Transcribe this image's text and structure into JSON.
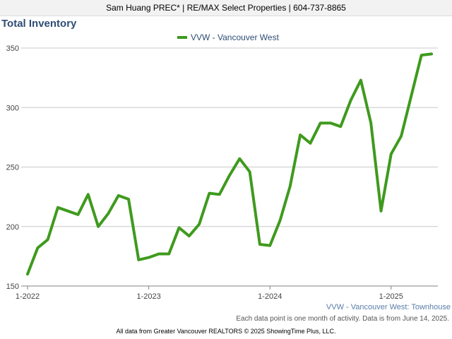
{
  "header": {
    "agent_line": "Sam Huang PREC* | RE/MAX Select Properties | 604-737-8865"
  },
  "footer": {
    "note": "Each data point is one month of activity. Data is from June 14, 2025.",
    "copyright": "All data from Greater Vancouver REALTORS © 2025 ShowingTime Plus, LLC."
  },
  "chart_data": {
    "type": "line",
    "title": "Total Inventory",
    "subtitle_label": "VVW - Vancouver West: Townhouse",
    "legend_position": "top-center",
    "grid": true,
    "ylim": [
      150,
      355
    ],
    "yticks": [
      150,
      200,
      250,
      300,
      350
    ],
    "xtick_labels": [
      "1-2022",
      "1-2023",
      "1-2024",
      "1-2025"
    ],
    "series_color": "#3f9a1e",
    "series": [
      {
        "name": "VVW - Vancouver West",
        "start_month": "2022-01",
        "values": [
          160,
          182,
          189,
          216,
          213,
          210,
          227,
          200,
          211,
          226,
          223,
          172,
          174,
          177,
          177,
          199,
          192,
          202,
          228,
          227,
          243,
          257,
          246,
          185,
          184,
          205,
          234,
          277,
          270,
          287,
          287,
          284,
          306,
          323,
          287,
          213,
          261,
          276,
          310,
          344,
          345
        ]
      }
    ]
  }
}
